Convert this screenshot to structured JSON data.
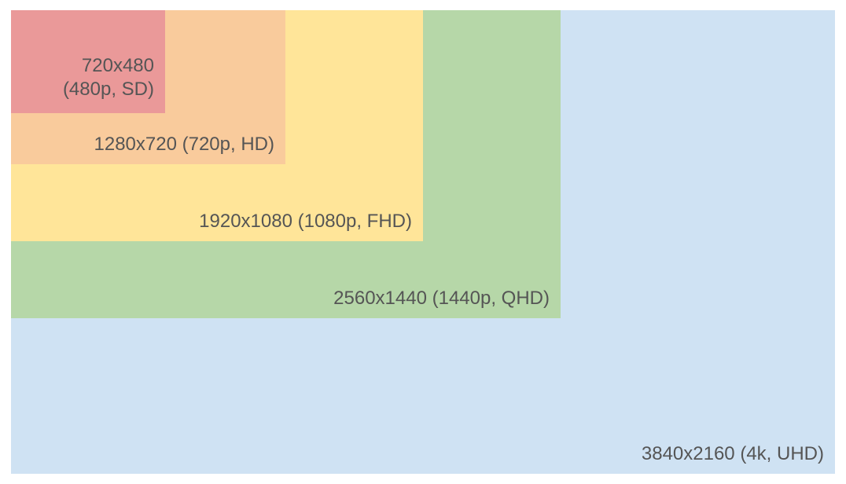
{
  "resolutions": {
    "uhd": {
      "text": "3840x2160 (4k, UHD)",
      "color": "#cfe2f3"
    },
    "qhd": {
      "text": "2560x1440 (1440p, QHD)",
      "color": "#b6d7a8"
    },
    "fhd": {
      "text": "1920x1080 (1080p, FHD)",
      "color": "#ffe599"
    },
    "hd": {
      "text": "1280x720 (720p, HD)",
      "color": "#f9cb9c"
    },
    "sd": {
      "line1": "720x480",
      "line2": "(480p, SD)",
      "color": "#ea9999"
    }
  }
}
